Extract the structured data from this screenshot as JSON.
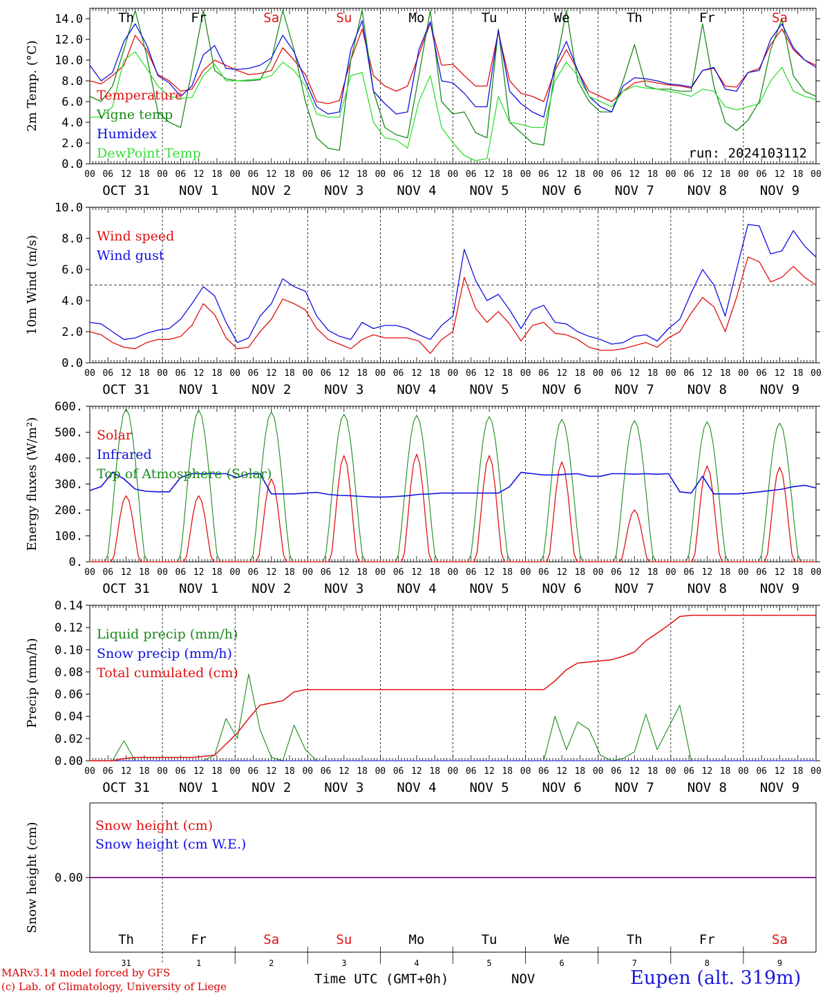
{
  "footer": {
    "model": "MARv3.14 model forced by GFS",
    "credit": "(c) Lab. of Climatology, University of Liege",
    "time_label": "Time UTC (GMT+0h)",
    "month": "NOV",
    "station": "Eupen (alt. 319m)"
  },
  "days": {
    "names": [
      "Th",
      "Fr",
      "Sa",
      "Su",
      "Mo",
      "Tu",
      "We",
      "Th",
      "Fr",
      "Sa"
    ],
    "weekend": [
      false,
      false,
      true,
      true,
      false,
      false,
      false,
      false,
      false,
      true
    ],
    "date_labels": [
      "OCT 31",
      "NOV  1",
      "NOV  2",
      "NOV  3",
      "NOV  4",
      "NOV  5",
      "NOV  6",
      "NOV  7",
      "NOV  8",
      "NOV  9"
    ],
    "day_numbers": [
      "31",
      "1",
      "2",
      "3",
      "4",
      "5",
      "6",
      "7",
      "8",
      "9"
    ],
    "hour_ticks": [
      "00",
      "06",
      "12",
      "18"
    ],
    "last_tick": "00"
  },
  "colors": {
    "red": "#e01010",
    "green": "#1a8a1a",
    "blue": "#1010e0",
    "lightgreen": "#33dd33",
    "purple": "#800080"
  },
  "chart_data": [
    {
      "type": "line",
      "ylabel": "2m Temp. (°C)",
      "ylim": [
        0,
        15
      ],
      "yticks": [
        "0.0",
        "2.0",
        "4.0",
        "6.0",
        "8.0",
        "10.0",
        "12.0",
        "14.0"
      ],
      "annotation": "run: 2024103112",
      "x_hours_from_start": "0 to 240, every 6 h",
      "series": [
        {
          "name": "Temperature",
          "color": "#e01010",
          "values": [
            8.0,
            7.7,
            8.5,
            9.5,
            12.4,
            11.0,
            8.6,
            8.0,
            7.0,
            7.2,
            9.0,
            10.0,
            9.5,
            9.0,
            8.6,
            8.7,
            9.0,
            11.2,
            10.0,
            8.6,
            6.0,
            5.8,
            6.1,
            10.0,
            13.0,
            8.5,
            7.5,
            7.0,
            7.5,
            10.5,
            13.6,
            9.5,
            9.6,
            8.5,
            7.5,
            7.5,
            12.7,
            8.0,
            6.8,
            6.5,
            6.0,
            9.0,
            11.0,
            9.0,
            7.0,
            6.5,
            6.0,
            7.0,
            7.8,
            8.0,
            7.8,
            7.6,
            7.5,
            7.3,
            9.0,
            9.2,
            7.5,
            7.4,
            8.8,
            9.2,
            11.5,
            13.0,
            11.0,
            10.0,
            9.5
          ]
        },
        {
          "name": "Vigne temp",
          "color": "#1a8a1a",
          "values": [
            6.5,
            6.0,
            7.5,
            11.0,
            14.8,
            10.5,
            5.0,
            4.0,
            3.5,
            9.0,
            14.8,
            9.0,
            8.2,
            8.0,
            8.0,
            8.1,
            10.0,
            14.8,
            11.0,
            6.0,
            2.5,
            1.5,
            1.3,
            10.0,
            14.8,
            7.0,
            3.5,
            2.8,
            2.5,
            8.5,
            14.8,
            6.0,
            4.8,
            5.0,
            3.0,
            2.5,
            13.0,
            4.0,
            3.0,
            2.0,
            1.8,
            9.0,
            14.8,
            8.0,
            6.0,
            5.0,
            5.0,
            8.0,
            11.5,
            7.5,
            7.2,
            7.2,
            7.0,
            7.0,
            13.5,
            7.5,
            4.0,
            3.2,
            4.2,
            6.0,
            11.0,
            14.0,
            8.5,
            7.0,
            6.5
          ]
        },
        {
          "name": "Humidex",
          "color": "#1010e0",
          "values": [
            9.5,
            8.0,
            8.8,
            11.8,
            13.5,
            11.5,
            8.5,
            7.8,
            6.5,
            7.5,
            10.5,
            11.4,
            9.2,
            9.1,
            9.2,
            9.5,
            10.2,
            12.4,
            10.8,
            8.0,
            5.5,
            4.8,
            5.0,
            11.0,
            13.8,
            7.0,
            5.8,
            4.8,
            5.0,
            11.0,
            13.7,
            8.0,
            7.8,
            6.8,
            5.5,
            5.5,
            12.9,
            7.0,
            5.8,
            5.0,
            4.5,
            9.5,
            11.8,
            9.0,
            6.5,
            5.5,
            5.0,
            7.5,
            8.3,
            8.2,
            8.0,
            7.7,
            7.6,
            7.4,
            9.0,
            9.3,
            7.2,
            7.0,
            8.8,
            9.0,
            12.0,
            13.5,
            11.2,
            10.0,
            9.3
          ]
        },
        {
          "name": "DewPoint Temp",
          "color": "#33dd33",
          "values": [
            4.5,
            4.5,
            5.5,
            10.0,
            10.8,
            9.2,
            7.5,
            6.5,
            6.3,
            6.4,
            8.5,
            9.6,
            8.0,
            8.0,
            8.1,
            8.2,
            8.5,
            9.8,
            9.0,
            7.5,
            4.8,
            4.5,
            4.5,
            8.5,
            8.8,
            4.0,
            2.5,
            2.3,
            1.5,
            6.0,
            8.5,
            3.5,
            2.0,
            0.8,
            0.3,
            0.5,
            6.5,
            4.0,
            3.8,
            3.5,
            3.5,
            8.0,
            9.8,
            8.5,
            6.5,
            6.0,
            5.5,
            7.0,
            7.5,
            7.3,
            7.2,
            7.0,
            6.8,
            6.5,
            7.2,
            7.0,
            5.5,
            5.2,
            5.5,
            5.8,
            8.0,
            9.3,
            7.0,
            6.5,
            6.2
          ]
        }
      ]
    },
    {
      "type": "line",
      "ylabel": "10m Wind (m/s)",
      "ylim": [
        0,
        10
      ],
      "yticks": [
        "0.0",
        "2.0",
        "4.0",
        "6.0",
        "8.0",
        "10.0"
      ],
      "reference_line": 5.0,
      "series": [
        {
          "name": "Wind speed",
          "color": "#e01010",
          "values": [
            2.0,
            1.8,
            1.3,
            1.0,
            0.9,
            1.3,
            1.5,
            1.5,
            1.7,
            2.4,
            3.8,
            3.1,
            1.6,
            0.9,
            1.0,
            2.0,
            2.8,
            4.1,
            3.8,
            3.4,
            2.2,
            1.5,
            1.2,
            0.9,
            1.5,
            1.8,
            1.6,
            1.6,
            1.6,
            1.4,
            0.6,
            1.5,
            2.0,
            5.5,
            3.5,
            2.6,
            3.3,
            2.5,
            1.4,
            2.4,
            2.6,
            1.9,
            1.8,
            1.5,
            1.0,
            0.8,
            0.8,
            0.9,
            1.1,
            1.3,
            1.0,
            1.6,
            2.0,
            3.2,
            4.2,
            3.6,
            2.0,
            4.2,
            6.8,
            6.5,
            5.2,
            5.5,
            6.2,
            5.5,
            5.0
          ]
        },
        {
          "name": "Wind gust",
          "color": "#1010e0",
          "values": [
            2.6,
            2.5,
            2.0,
            1.5,
            1.6,
            1.9,
            2.1,
            2.2,
            2.8,
            3.8,
            4.9,
            4.3,
            2.6,
            1.3,
            1.6,
            3.0,
            3.8,
            5.4,
            4.9,
            4.6,
            3.0,
            2.1,
            1.7,
            1.5,
            2.6,
            2.2,
            2.4,
            2.4,
            2.2,
            1.8,
            1.5,
            2.4,
            3.0,
            7.3,
            5.3,
            4.0,
            4.4,
            3.4,
            2.2,
            3.4,
            3.7,
            2.6,
            2.5,
            2.0,
            1.7,
            1.5,
            1.2,
            1.3,
            1.7,
            1.8,
            1.4,
            2.2,
            2.8,
            4.5,
            6.0,
            5.0,
            3.0,
            6.0,
            8.9,
            8.8,
            7.0,
            7.2,
            8.5,
            7.5,
            6.8
          ]
        }
      ]
    },
    {
      "type": "line",
      "ylabel": "Energy fluxes (W/m²)",
      "ylim": [
        0,
        600
      ],
      "yticks": [
        "0.",
        "100.",
        "200.",
        "300.",
        "400.",
        "500.",
        "600."
      ],
      "series": [
        {
          "name": "Solar",
          "color": "#e01010",
          "peaks": [
            255,
            255,
            320,
            410,
            415,
            410,
            385,
            200,
            370,
            365
          ]
        },
        {
          "name": "Infrared",
          "color": "#1010e0",
          "values": [
            275,
            290,
            345,
            320,
            280,
            272,
            270,
            270,
            325,
            340,
            340,
            340,
            340,
            325,
            340,
            340,
            262,
            262,
            262,
            265,
            268,
            260,
            256,
            255,
            252,
            250,
            250,
            252,
            255,
            260,
            262,
            265,
            265,
            265,
            265,
            265,
            265,
            290,
            345,
            340,
            335,
            335,
            338,
            340,
            330,
            330,
            340,
            340,
            338,
            340,
            338,
            340,
            270,
            265,
            330,
            262,
            262,
            262,
            265,
            270,
            275,
            280,
            290,
            295,
            285
          ]
        },
        {
          "name": "Top of Atmosphere (Solar)",
          "color": "#1a8a1a",
          "peaks": [
            590,
            585,
            578,
            570,
            565,
            560,
            550,
            545,
            540,
            535
          ]
        }
      ]
    },
    {
      "type": "line",
      "ylabel": "Precip (mm/h)",
      "ylim": [
        0,
        0.14
      ],
      "yticks": [
        "0.00",
        "0.02",
        "0.04",
        "0.06",
        "0.08",
        "0.10",
        "0.12",
        "0.14"
      ],
      "series": [
        {
          "name": "Liquid precip (mm/h)",
          "color": "#1a8a1a",
          "values": [
            0,
            0,
            0,
            0.018,
            0,
            0,
            0,
            0,
            0,
            0,
            0,
            0.005,
            0.038,
            0.02,
            0.078,
            0.028,
            0.003,
            0,
            0.032,
            0.01,
            0,
            0,
            0,
            0,
            0,
            0,
            0,
            0,
            0,
            0,
            0,
            0,
            0,
            0,
            0,
            0,
            0,
            0,
            0,
            0,
            0,
            0.04,
            0.01,
            0.035,
            0.028,
            0.005,
            0,
            0.002,
            0.008,
            0.042,
            0.01,
            0.03,
            0.05,
            0,
            0,
            0,
            0,
            0,
            0,
            0,
            0,
            0,
            0,
            0,
            0
          ]
        },
        {
          "name": "Snow precip (mm/h)",
          "color": "#1010e0",
          "values": [
            0,
            0,
            0,
            0,
            0,
            0,
            0,
            0,
            0,
            0,
            0,
            0,
            0,
            0,
            0,
            0,
            0,
            0,
            0,
            0,
            0,
            0,
            0,
            0,
            0,
            0,
            0,
            0,
            0,
            0,
            0,
            0,
            0,
            0,
            0,
            0,
            0,
            0,
            0,
            0,
            0,
            0,
            0,
            0,
            0,
            0,
            0,
            0,
            0,
            0,
            0,
            0,
            0,
            0,
            0,
            0,
            0,
            0,
            0,
            0,
            0,
            0,
            0,
            0,
            0
          ]
        },
        {
          "name": "Total cumulated (cm)",
          "color": "#e01010",
          "values": [
            0,
            0,
            0,
            0.002,
            0.003,
            0.003,
            0.003,
            0.003,
            0.003,
            0.003,
            0.004,
            0.005,
            0.015,
            0.025,
            0.038,
            0.05,
            0.052,
            0.054,
            0.062,
            0.064,
            0.064,
            0.064,
            0.064,
            0.064,
            0.064,
            0.064,
            0.064,
            0.064,
            0.064,
            0.064,
            0.064,
            0.064,
            0.064,
            0.064,
            0.064,
            0.064,
            0.064,
            0.064,
            0.064,
            0.064,
            0.064,
            0.072,
            0.082,
            0.088,
            0.089,
            0.09,
            0.091,
            0.094,
            0.098,
            0.108,
            0.115,
            0.122,
            0.13,
            0.131,
            0.131,
            0.131,
            0.131,
            0.131,
            0.131,
            0.131,
            0.131,
            0.131,
            0.131,
            0.131,
            0.131
          ]
        }
      ]
    },
    {
      "type": "line",
      "ylabel": "Snow height (cm)",
      "yticks": [
        "0.00"
      ],
      "series": [
        {
          "name": "Snow height (cm)",
          "color": "#e01010",
          "values": [
            0,
            0
          ]
        },
        {
          "name": "Snow height (cm W.E.)",
          "color": "#1010e0",
          "values": [
            0,
            0
          ]
        }
      ]
    }
  ]
}
